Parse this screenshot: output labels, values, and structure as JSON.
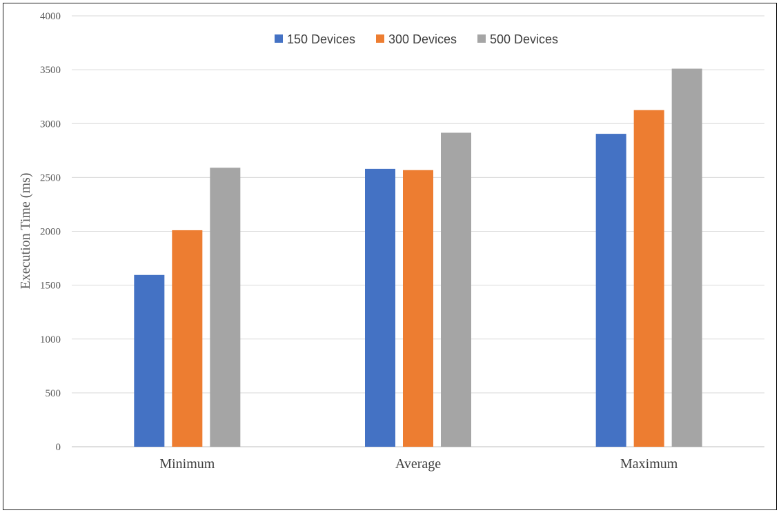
{
  "chart_data": {
    "type": "bar",
    "title": "",
    "xlabel": "",
    "ylabel": "Execution Time (ms)",
    "categories": [
      "Minimum",
      "Average",
      "Maximum"
    ],
    "series": [
      {
        "name": "150 Devices",
        "color": "#4472C4",
        "values": [
          1595,
          2580,
          2905
        ]
      },
      {
        "name": "300 Devices",
        "color": "#ED7D31",
        "values": [
          2010,
          2568,
          3125
        ]
      },
      {
        "name": "500 Devices",
        "color": "#A5A5A5",
        "values": [
          2590,
          2915,
          3510
        ]
      }
    ],
    "ylim": [
      0,
      4000
    ],
    "yticks": [
      0,
      500,
      1000,
      1500,
      2000,
      2500,
      3000,
      3500,
      4000
    ],
    "grid": true,
    "legend_position": "top-center"
  }
}
